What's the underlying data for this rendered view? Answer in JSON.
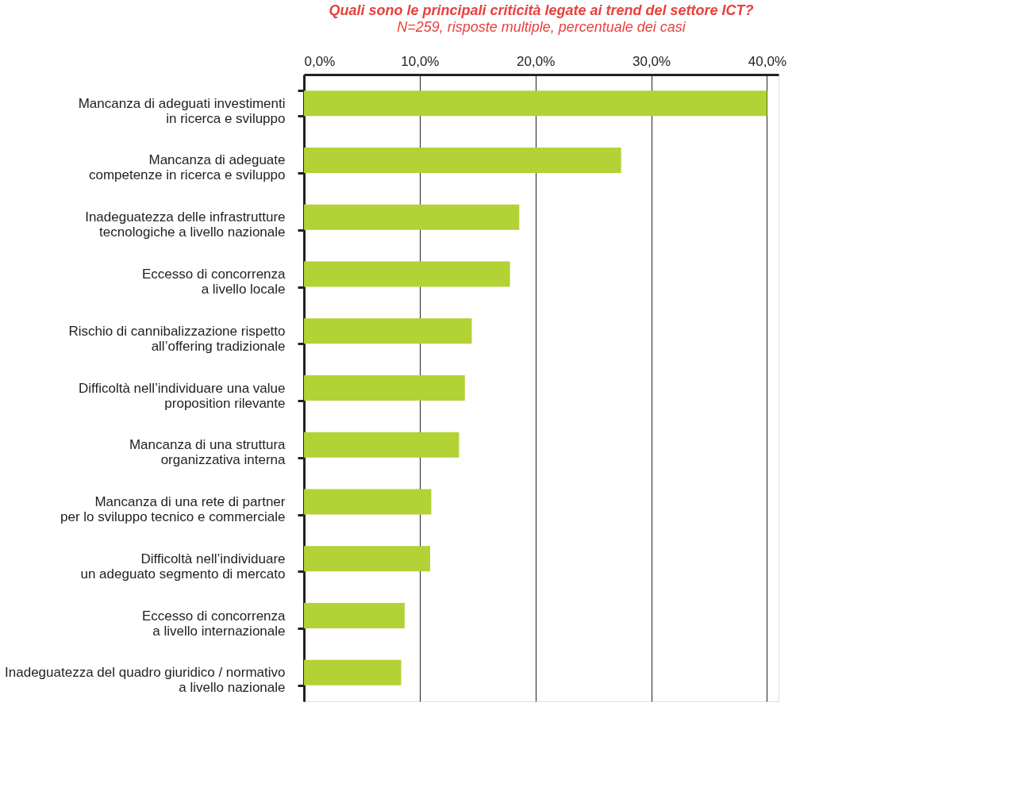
{
  "chart_data": {
    "type": "bar",
    "orientation": "horizontal",
    "title": "Quali sono le principali criticità legate ai trend del settore ICT?",
    "subtitle": "N=259, risposte multiple, percentuale dei casi",
    "categories": [
      "Mancanza di adeguati investimenti\nin ricerca e sviluppo",
      "Mancanza di adeguate\ncompetenze in ricerca e sviluppo",
      "Inadeguatezza delle infrastrutture\ntecnologiche a livello nazionale",
      "Eccesso di concorrenza\na livello locale",
      "Rischio di cannibalizzazione rispetto\nall’offering tradizionale",
      "Difficoltà nell’individuare una value\nproposition rilevante",
      "Mancanza di una struttura\norganizzativa interna",
      "Mancanza di una rete di partner\nper lo sviluppo tecnico e commerciale",
      "Difficoltà nell’individuare\nun adeguato segmento di mercato",
      "Eccesso di concorrenza\na livello internazionale",
      "Inadeguatezza del quadro giuridico / normativo\na livello nazionale"
    ],
    "values": [
      40.0,
      27.4,
      18.6,
      17.8,
      14.5,
      13.9,
      13.4,
      11.0,
      10.9,
      8.7,
      8.4
    ],
    "color": "#b2d235",
    "xlim": [
      0,
      41
    ],
    "xticks": [
      {
        "value": 0,
        "label": "0,0%"
      },
      {
        "value": 10,
        "label": "10,0%"
      },
      {
        "value": 20,
        "label": "20,0%"
      },
      {
        "value": 30,
        "label": "30,0%"
      },
      {
        "value": 40,
        "label": "40,0%"
      }
    ],
    "grid": "x"
  }
}
